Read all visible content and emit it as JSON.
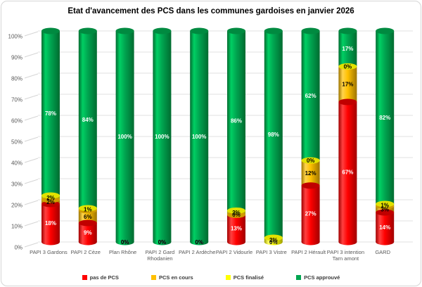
{
  "chart_data": {
    "type": "bar",
    "subtype": "stacked-100-cylinder-3d",
    "title": "Etat d'avancement des PCS dans les communes gardoises en janvier 2026",
    "categories": [
      "PAPI 3 Gardons",
      "PAPI 2 Cèze",
      "Plan Rhône",
      "PAPI 2 Gard Rhodanien",
      "PAPI 2 Ardèche",
      "PAPI 2 Vidourle",
      "PAPI 3 Vistre",
      "PAPI 2 Hérault",
      "PAPI 3 intention Tarn amont",
      "GARD"
    ],
    "series": [
      {
        "name": "pas de PCS",
        "color": "#FF0000",
        "color_dark": "#a00000",
        "color_light": "#ff4040",
        "cap_color": "#c00000",
        "label_color": "#ffffff",
        "values": [
          18,
          9,
          0,
          0,
          0,
          13,
          0,
          27,
          67,
          14
        ]
      },
      {
        "name": "PCS en cours",
        "color": "#FFC000",
        "color_dark": "#9c7400",
        "color_light": "#ffd34d",
        "cap_color": "#d09c00",
        "label_color": "#000000",
        "values": [
          2,
          6,
          0,
          0,
          0,
          0,
          0,
          12,
          17,
          3
        ]
      },
      {
        "name": "PCS finalisé",
        "color": "#FFFF00",
        "color_dark": "#a0a000",
        "color_light": "#ffff66",
        "cap_color": "#e2e200",
        "label_color": "#000000",
        "values": [
          2,
          1,
          0,
          0,
          0,
          2,
          2,
          0,
          0,
          1
        ]
      },
      {
        "name": "PCS approuvé",
        "color": "#00A550",
        "color_dark": "#006b30",
        "color_light": "#00cf63",
        "cap_color": "#008a40",
        "label_color": "#ffffff",
        "values": [
          78,
          84,
          100,
          100,
          100,
          86,
          98,
          62,
          17,
          82
        ]
      }
    ],
    "y_ticks": [
      "0%",
      "10%",
      "20%",
      "30%",
      "40%",
      "50%",
      "60%",
      "70%",
      "80%",
      "90%",
      "100%"
    ],
    "ylim": [
      0,
      100
    ],
    "grid": true,
    "legend_position": "bottom",
    "axis_text_color": "#595959",
    "grid_color": "#e0e0e0"
  }
}
